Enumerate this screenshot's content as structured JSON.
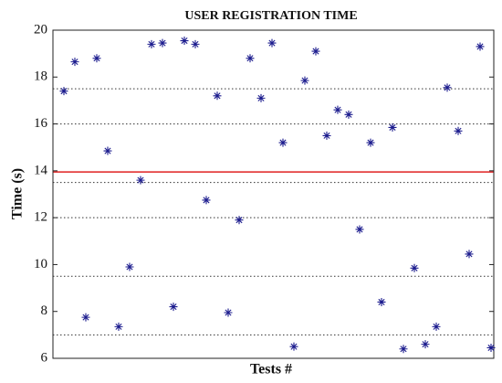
{
  "chart_data": {
    "type": "scatter",
    "title": "USER REGISTRATION TIME",
    "x_label": "Tests #",
    "y_label": "Time (s)",
    "x": [
      1,
      2,
      3,
      4,
      5,
      6,
      7,
      8,
      9,
      10,
      11,
      12,
      13,
      14,
      15,
      16,
      17,
      18,
      19,
      20,
      21,
      22,
      23,
      24,
      25,
      26,
      27,
      28,
      29,
      30,
      31,
      32,
      33,
      34,
      35,
      36,
      37,
      38,
      39,
      40
    ],
    "values": [
      17.4,
      18.65,
      7.75,
      18.8,
      14.85,
      7.35,
      9.9,
      13.6,
      19.4,
      19.45,
      8.2,
      19.55,
      19.4,
      12.75,
      17.2,
      7.95,
      11.9,
      18.8,
      17.1,
      19.45,
      15.2,
      6.5,
      17.85,
      19.1,
      15.5,
      16.6,
      16.4,
      11.5,
      15.2,
      8.4,
      15.85,
      6.4,
      9.85,
      6.6,
      7.35,
      17.55,
      15.7,
      10.45,
      19.3,
      6.45
    ],
    "color": "#1c1c8e",
    "marker": "asterisk",
    "xlim": [
      0,
      40.25
    ],
    "ylim": [
      6,
      20
    ],
    "yticks": [
      6,
      8,
      10,
      12,
      14,
      16,
      18,
      20
    ],
    "grid_lines": [
      7,
      9.5,
      12,
      13.5,
      16,
      17.5
    ],
    "mean_line": 13.95,
    "mean_color": "#e02020"
  }
}
